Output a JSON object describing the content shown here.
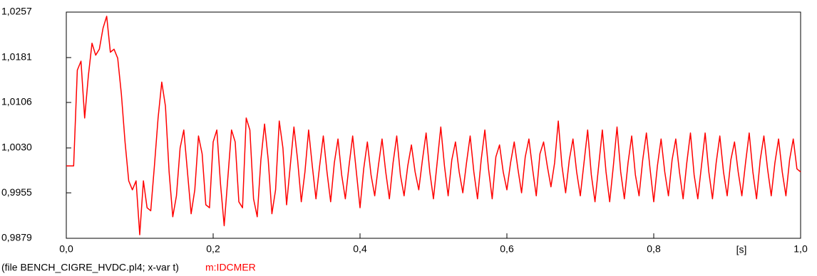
{
  "chart_data": {
    "type": "line",
    "file_label": "(file BENCH_CIGRE_HVDC.pl4; x-var t)",
    "x_label": "[s]",
    "xlim": [
      0,
      1.0
    ],
    "xticks": [
      {
        "value": 0,
        "label": "0,0"
      },
      {
        "value": 0.2,
        "label": "0,2"
      },
      {
        "value": 0.4,
        "label": "0,4"
      },
      {
        "value": 0.6,
        "label": "0,6"
      },
      {
        "value": 0.8,
        "label": "0,8"
      },
      {
        "value": 1.0,
        "label": "1,0"
      }
    ],
    "ylim": [
      0.9879,
      1.0257
    ],
    "yticks": [
      {
        "value": 0.9879,
        "label": "0,9879"
      },
      {
        "value": 0.9955,
        "label": "0,9955"
      },
      {
        "value": 1.003,
        "label": "1,0030"
      },
      {
        "value": 1.0106,
        "label": "1,0106"
      },
      {
        "value": 1.0181,
        "label": "1,0181"
      },
      {
        "value": 1.0257,
        "label": "1,0257"
      }
    ],
    "grid": false,
    "x": [
      0,
      0.005,
      0.01,
      0.015,
      0.02,
      0.025,
      0.03,
      0.035,
      0.04,
      0.045,
      0.05,
      0.055,
      0.06,
      0.065,
      0.07,
      0.075,
      0.08,
      0.085,
      0.09,
      0.095,
      0.1,
      0.105,
      0.11,
      0.115,
      0.12,
      0.125,
      0.13,
      0.135,
      0.14,
      0.145,
      0.15,
      0.155,
      0.16,
      0.165,
      0.17,
      0.175,
      0.18,
      0.185,
      0.19,
      0.195,
      0.2,
      0.205,
      0.21,
      0.215,
      0.22,
      0.225,
      0.23,
      0.235,
      0.24,
      0.245,
      0.25,
      0.255,
      0.26,
      0.265,
      0.27,
      0.275,
      0.28,
      0.285,
      0.29,
      0.295,
      0.3,
      0.305,
      0.31,
      0.315,
      0.32,
      0.325,
      0.33,
      0.335,
      0.34,
      0.345,
      0.35,
      0.355,
      0.36,
      0.365,
      0.37,
      0.375,
      0.38,
      0.385,
      0.39,
      0.395,
      0.4,
      0.405,
      0.41,
      0.415,
      0.42,
      0.425,
      0.43,
      0.435,
      0.44,
      0.445,
      0.45,
      0.455,
      0.46,
      0.465,
      0.47,
      0.475,
      0.48,
      0.485,
      0.49,
      0.495,
      0.5,
      0.505,
      0.51,
      0.515,
      0.52,
      0.525,
      0.53,
      0.535,
      0.54,
      0.545,
      0.55,
      0.555,
      0.56,
      0.565,
      0.57,
      0.575,
      0.58,
      0.585,
      0.59,
      0.595,
      0.6,
      0.605,
      0.61,
      0.615,
      0.62,
      0.625,
      0.63,
      0.635,
      0.64,
      0.645,
      0.65,
      0.655,
      0.66,
      0.665,
      0.67,
      0.675,
      0.68,
      0.685,
      0.69,
      0.695,
      0.7,
      0.705,
      0.71,
      0.715,
      0.72,
      0.725,
      0.73,
      0.735,
      0.74,
      0.745,
      0.75,
      0.755,
      0.76,
      0.765,
      0.77,
      0.775,
      0.78,
      0.785,
      0.79,
      0.795,
      0.8,
      0.805,
      0.81,
      0.815,
      0.82,
      0.825,
      0.83,
      0.835,
      0.84,
      0.845,
      0.85,
      0.855,
      0.86,
      0.865,
      0.87,
      0.875,
      0.88,
      0.885,
      0.89,
      0.895,
      0.9,
      0.905,
      0.91,
      0.915,
      0.92,
      0.925,
      0.93,
      0.935,
      0.94,
      0.945,
      0.95,
      0.955,
      0.96,
      0.965,
      0.97,
      0.975,
      0.98,
      0.985,
      0.99,
      0.995,
      1.0
    ],
    "series": [
      {
        "name": "m:IDCMER",
        "color": "#ff0000",
        "values": [
          1.0,
          1.0,
          1.0,
          1.016,
          1.0175,
          1.008,
          1.015,
          1.0205,
          1.0185,
          1.0195,
          1.023,
          1.025,
          1.019,
          1.0195,
          1.018,
          1.012,
          1.004,
          0.9975,
          0.996,
          0.9975,
          0.9885,
          0.9975,
          0.993,
          0.9925,
          1.0,
          1.008,
          1.014,
          1.01,
          0.999,
          0.9915,
          0.995,
          1.003,
          1.006,
          0.999,
          0.992,
          0.996,
          1.005,
          1.002,
          0.9935,
          0.993,
          1.004,
          1.006,
          0.997,
          0.99,
          0.998,
          1.006,
          1.004,
          0.994,
          0.993,
          1.008,
          1.006,
          0.9945,
          0.9915,
          1.001,
          1.007,
          1.001,
          0.992,
          0.996,
          1.0075,
          1.003,
          0.9935,
          1.0,
          1.0065,
          1.001,
          0.994,
          0.999,
          1.006,
          1.0,
          0.9945,
          1.0,
          1.005,
          0.999,
          0.994,
          1.0005,
          1.0045,
          0.9985,
          0.9945,
          1.0,
          1.005,
          0.999,
          0.993,
          0.9995,
          1.004,
          0.9985,
          0.995,
          1.0,
          1.0045,
          0.999,
          0.9945,
          1.0005,
          1.005,
          0.9985,
          0.995,
          1.0,
          1.0035,
          0.999,
          0.996,
          1.001,
          1.0055,
          0.999,
          0.9945,
          1.0005,
          1.0065,
          1.0,
          0.995,
          1.001,
          1.004,
          0.999,
          0.9955,
          1.0005,
          1.005,
          0.999,
          0.9945,
          1.001,
          1.006,
          0.9995,
          0.9945,
          1.0015,
          1.0035,
          0.999,
          0.996,
          1.0005,
          1.004,
          0.9995,
          0.9955,
          1.0015,
          1.0045,
          0.9995,
          0.995,
          1.002,
          1.004,
          1.0,
          0.9965,
          1.0005,
          1.0075,
          1.0,
          0.9955,
          1.001,
          1.0045,
          0.999,
          0.995,
          1.0005,
          1.006,
          0.9985,
          0.994,
          1.0,
          1.006,
          0.999,
          0.994,
          1.0,
          1.0065,
          0.999,
          0.9945,
          1.0005,
          1.005,
          0.9985,
          0.995,
          1.001,
          1.0055,
          0.9995,
          0.994,
          1.0,
          1.0045,
          0.999,
          0.995,
          1.001,
          1.0045,
          0.999,
          0.9945,
          1.0005,
          1.0055,
          0.9985,
          0.9945,
          1.0,
          1.0055,
          0.999,
          0.9945,
          1.0005,
          1.005,
          0.999,
          0.995,
          1.001,
          1.004,
          0.999,
          0.995,
          1.0005,
          1.0055,
          0.999,
          0.9945,
          1.001,
          1.005,
          0.9995,
          0.995,
          1.0005,
          1.0045,
          0.999,
          0.995,
          1.001,
          1.0045,
          0.9995,
          0.999
        ]
      }
    ]
  }
}
